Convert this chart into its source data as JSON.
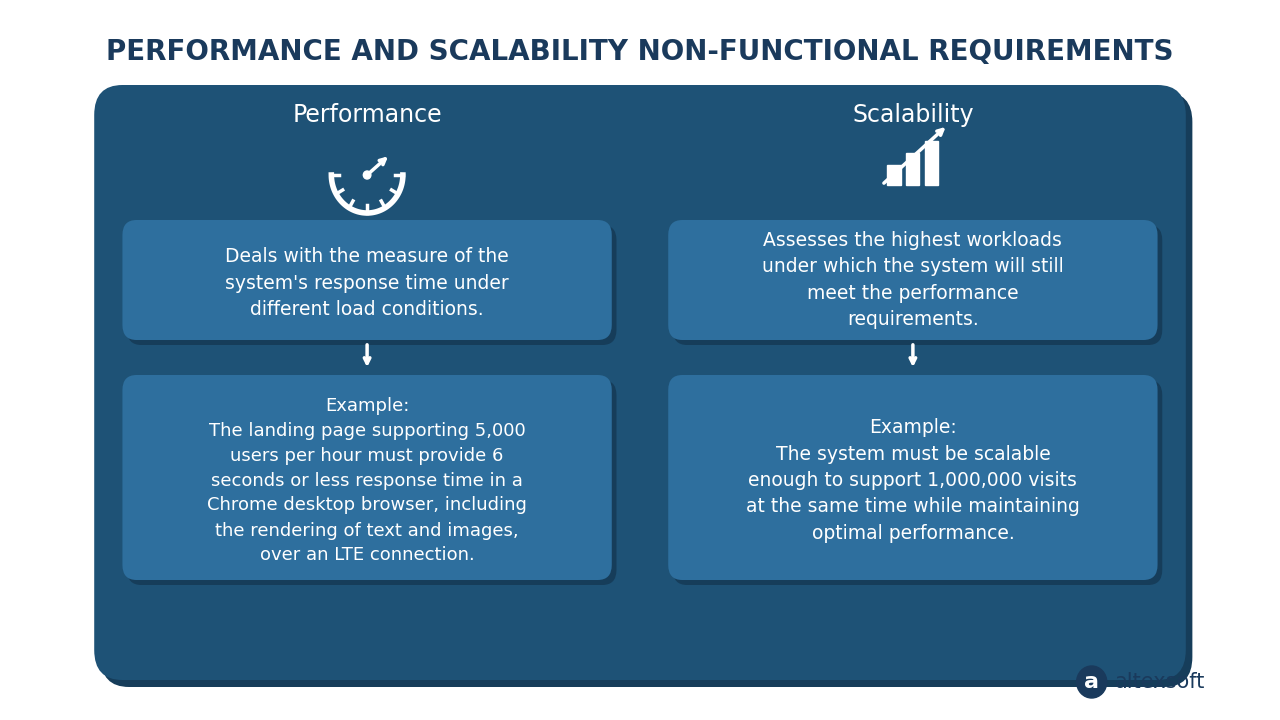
{
  "title": "PERFORMANCE AND SCALABILITY NON-FUNCTIONAL REQUIREMENTS",
  "title_color": "#1a3a5c",
  "title_fontsize": 20,
  "bg_color": "#ffffff",
  "outer_box_color": "#1e5276",
  "outer_box_shadow": "#163d5a",
  "inner_box_color": "#2e6f9e",
  "left_title": "Performance",
  "right_title": "Scalability",
  "left_desc": "Deals with the measure of the\nsystem's response time under\ndifferent load conditions.",
  "right_desc": "Assesses the highest workloads\nunder which the system will still\nmeet the performance\nrequirements.",
  "left_example": "Example:\nThe landing page supporting 5,000\nusers per hour must provide 6\nseconds or less response time in a\nChrome desktop browser, including\nthe rendering of text and images,\nover an LTE connection.",
  "right_example": "Example:\nThe system must be scalable\nenough to support 1,000,000 visits\nat the same time while maintaining\noptimal performance.",
  "text_color": "#ffffff",
  "logo_text": "altexsoft",
  "logo_color": "#1a3a5c"
}
